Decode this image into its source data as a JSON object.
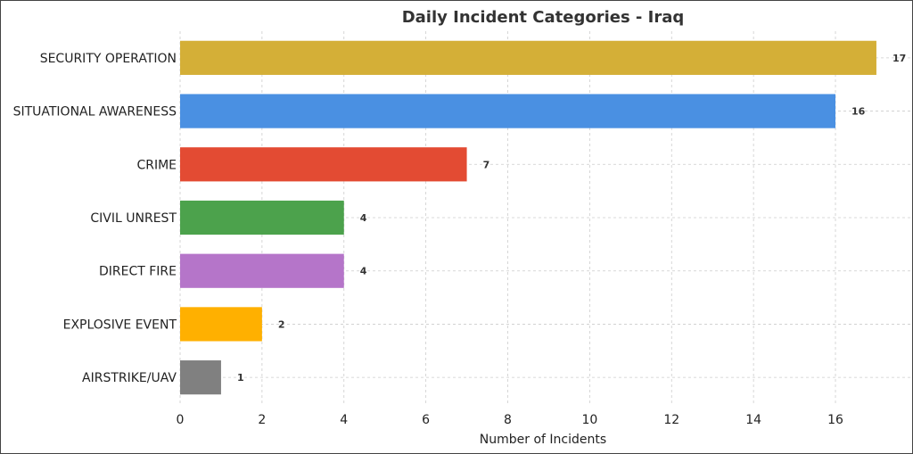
{
  "chart_data": {
    "type": "bar",
    "orientation": "horizontal",
    "title": "Daily Incident Categories - Iraq",
    "xlabel": "Number of Incidents",
    "ylabel": "",
    "xlim": [
      0,
      17.85
    ],
    "xticks": [
      0,
      2,
      4,
      6,
      8,
      10,
      12,
      14,
      16
    ],
    "grid": true,
    "categories": [
      "SECURITY OPERATION",
      "SITUATIONAL AWARENESS",
      "CRIME",
      "CIVIL UNREST",
      "DIRECT FIRE",
      "EXPLOSIVE EVENT",
      "AIRSTRIKE/UAV"
    ],
    "values": [
      17,
      16,
      7,
      4,
      4,
      2,
      1
    ],
    "colors": [
      "#d4af37",
      "#4a90e2",
      "#e34b33",
      "#4ca24c",
      "#b575c9",
      "#ffb000",
      "#808080"
    ]
  }
}
